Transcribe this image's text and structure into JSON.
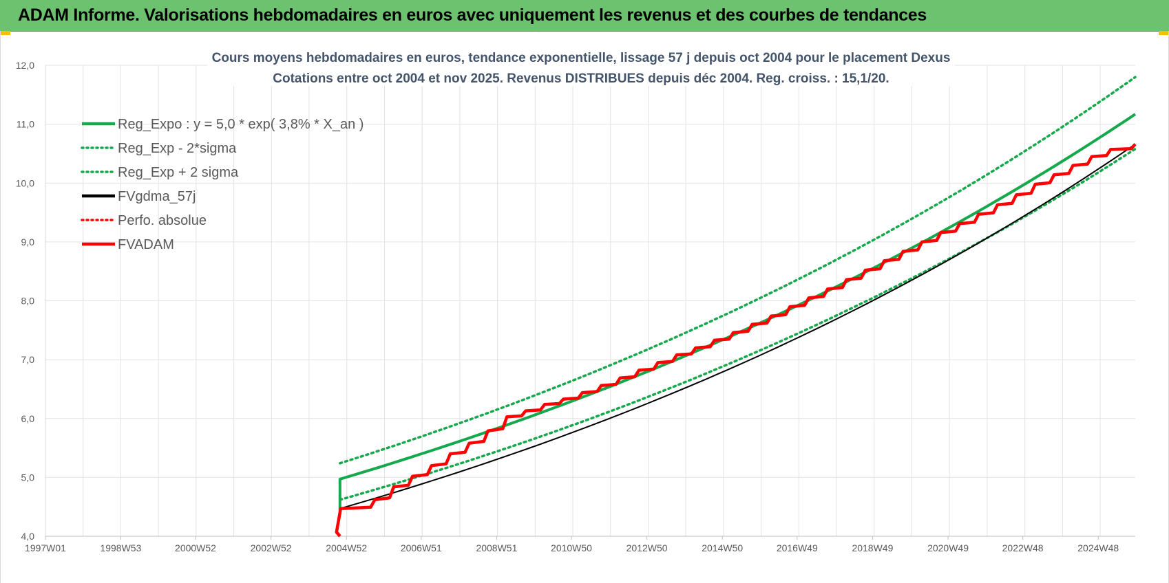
{
  "banner": {
    "title": "ADAM Informe. Valorisations hebdomadaires en euros avec uniquement les revenus et des courbes de tendances"
  },
  "colors": {
    "banner_bg": "#6cc26e",
    "trend": "#16a84c",
    "fv_gdma": "#000000",
    "fvadam": "#ff0000",
    "perfo": "#ff0000",
    "grid": "#e3e3e3"
  },
  "chart_data": {
    "type": "line",
    "title": "Cours moyens hebdomadaires en euros, tendance exponentielle, lissage 57 j depuis oct 2004 pour le placement Dexus",
    "subtitle": "Cotations entre oct 2004 et nov 2025. Revenus DISTRIBUES depuis déc 2004. Reg. croiss. : 15,1/20.",
    "x_tick_labels": [
      "1997W01",
      "1998W53",
      "2000W52",
      "2002W52",
      "2004W52",
      "2006W51",
      "2008W51",
      "2010W50",
      "2012W50",
      "2014W50",
      "2016W49",
      "2018W49",
      "2020W49",
      "2022W48",
      "2024W48"
    ],
    "x_range": [
      "1997W01",
      "2025W47"
    ],
    "ylim": [
      4.0,
      12.0
    ],
    "y_ticks": [
      "4,0",
      "5,0",
      "6,0",
      "7,0",
      "8,0",
      "9,0",
      "10,0",
      "11,0",
      "12,0"
    ],
    "grid": true,
    "legend_position": "top-left",
    "series": [
      {
        "name": "Reg_Expo : y = 5,0 * exp( 3,8% *  X_an )",
        "style": "solid",
        "color": "#16a84c",
        "x": [
          "2004W43",
          "2025W47"
        ],
        "y": [
          4.97,
          11.17
        ]
      },
      {
        "name": "Reg_Exp - 2*sigma",
        "style": "dotted",
        "color": "#16a84c",
        "x": [
          "2004W43",
          "2025W47"
        ],
        "y": [
          4.62,
          10.58
        ]
      },
      {
        "name": "Reg_Exp + 2 sigma",
        "style": "dotted",
        "color": "#16a84c",
        "x": [
          "2004W43",
          "2025W47"
        ],
        "y": [
          5.24,
          11.8
        ]
      },
      {
        "name": "FVgdma_57j",
        "style": "solid",
        "color": "#000000",
        "x": [
          "2004W43",
          "2025W47"
        ],
        "y": [
          4.47,
          10.66
        ]
      },
      {
        "name": "Perfo. absolue",
        "style": "dotted",
        "color": "#ff0000",
        "x": [
          "2004W43",
          "2025W47"
        ],
        "y": [
          4.47,
          10.66
        ]
      },
      {
        "name": "FVADAM",
        "style": "solid",
        "color": "#ff0000",
        "x": [
          "2004W43",
          "2004W44",
          "2005W39",
          "2006W13",
          "2006W39",
          "2007W13",
          "2007W39",
          "2008W13",
          "2008W39",
          "2009W13",
          "2009W39",
          "2010W13",
          "2010W39",
          "2011W13",
          "2011W39",
          "2012W13",
          "2012W39",
          "2013W13",
          "2013W39",
          "2014W13",
          "2014W39",
          "2015W13",
          "2015W39",
          "2016W13",
          "2016W39",
          "2017W13",
          "2017W39",
          "2018W13",
          "2018W39",
          "2019W13",
          "2019W39",
          "2020W13",
          "2020W39",
          "2021W13",
          "2021W39",
          "2022W13",
          "2022W39",
          "2023W13",
          "2023W39",
          "2024W13",
          "2024W39",
          "2025W13",
          "2025W47"
        ],
        "y": [
          4.0,
          4.47,
          4.62,
          4.84,
          5.02,
          5.2,
          5.4,
          5.58,
          5.79,
          6.03,
          6.13,
          6.24,
          6.33,
          6.44,
          6.56,
          6.69,
          6.82,
          6.95,
          7.08,
          7.2,
          7.33,
          7.46,
          7.6,
          7.74,
          7.9,
          8.05,
          8.2,
          8.36,
          8.52,
          8.68,
          8.84,
          9.0,
          9.16,
          9.31,
          9.47,
          9.63,
          9.8,
          9.98,
          10.14,
          10.3,
          10.45,
          10.57,
          10.66
        ]
      }
    ]
  }
}
